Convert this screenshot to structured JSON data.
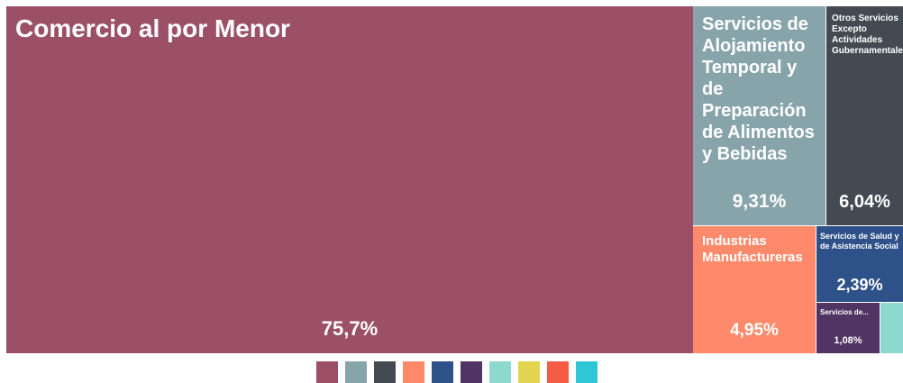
{
  "chart_data": {
    "type": "treemap",
    "unit": "%",
    "items": [
      {
        "label": "Comercio al por Menor",
        "value": 75.7,
        "display": "75,7%",
        "color": "#9b5068"
      },
      {
        "label": "Servicios de Alojamiento Temporal y de Preparación de Alimentos y Bebidas",
        "value": 9.31,
        "display": "9,31%",
        "color": "#88a4ab"
      },
      {
        "label": "Otros Servicios Excepto Actividades Gubernamentales",
        "value": 6.04,
        "display": "6,04%",
        "color": "#434a51"
      },
      {
        "label": "Industrias Manufactureras",
        "value": 4.95,
        "display": "4,95%",
        "color": "#ff8a6b"
      },
      {
        "label": "Servicios de Salud y de Asistencia Social",
        "value": 2.39,
        "display": "2,39%",
        "color": "#2d5188"
      },
      {
        "label": "Servicios de...",
        "value": 1.08,
        "display": "1,08%",
        "color": "#4f3464"
      },
      {
        "label": "",
        "value": 0.53,
        "display": "",
        "color": "#8dd9d0"
      }
    ],
    "legend_colors": [
      "#9b5068",
      "#88a4ab",
      "#434a51",
      "#ff8a6b",
      "#2d5188",
      "#4f3464",
      "#8dd9d0",
      "#e2d44e",
      "#f45b45",
      "#2fc6d6"
    ]
  }
}
